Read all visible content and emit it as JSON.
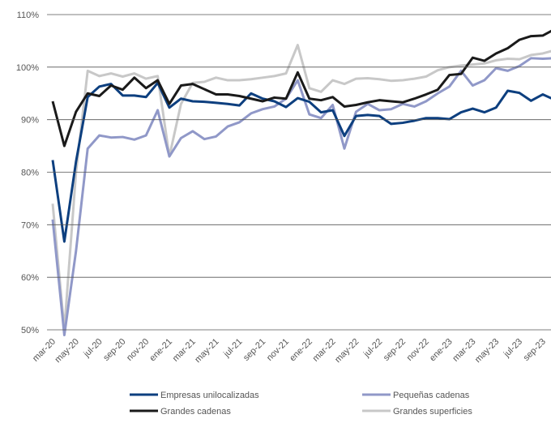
{
  "chart_data": {
    "type": "line",
    "categories": [
      "mar-20",
      null,
      "may-20",
      null,
      "jul-20",
      null,
      "sep-20",
      null,
      "nov-20",
      null,
      "ene-21",
      null,
      "mar-21",
      null,
      "may-21",
      null,
      "jul-21",
      null,
      "sep-21",
      null,
      "nov-21",
      null,
      "ene-22",
      null,
      "mar-22",
      null,
      "may-22",
      null,
      "jul-22",
      null,
      "sep-22",
      null,
      "nov-22",
      null,
      "ene-23",
      null,
      "mar-23",
      null,
      "may-23",
      null,
      "jul-23",
      null,
      "sep-23",
      null
    ],
    "series": [
      {
        "name": "Empresas unilocalizadas",
        "color": "#0d3f7f",
        "values": [
          82.3,
          66.8,
          82,
          94.3,
          96.3,
          96.8,
          94.6,
          94.6,
          94.3,
          97,
          92.3,
          94,
          93.5,
          93.4,
          93.2,
          93,
          92.7,
          95,
          94,
          93.5,
          92.4,
          94.1,
          93.4,
          91.4,
          91.8,
          86.9,
          90.7,
          90.9,
          90.7,
          89.2,
          89.4,
          89.8,
          90.3,
          90.3,
          90.1,
          91.4,
          92.1,
          91.4,
          92.3,
          95.5,
          95.1,
          93.6,
          94.8,
          93.8
        ]
      },
      {
        "name": "Pequeñas cadenas",
        "color": "#9098c8",
        "values": [
          71,
          49,
          65,
          84.5,
          87,
          86.6,
          86.7,
          86.2,
          87,
          91.8,
          83,
          86.5,
          87.8,
          86.3,
          86.8,
          88.7,
          89.5,
          91.2,
          92,
          92.5,
          94,
          97.5,
          91,
          90.3,
          92.8,
          84.5,
          91.5,
          93,
          91.8,
          92,
          93,
          92.5,
          93.5,
          95,
          96.3,
          99.3,
          96.5,
          97.5,
          99.8,
          99.3,
          100.2,
          101.7,
          101.6,
          101.7
        ]
      },
      {
        "name": "Grandes cadenas",
        "color": "#1a1a1a",
        "values": [
          93.5,
          85,
          91.5,
          95,
          94.5,
          96.5,
          95.7,
          98,
          96,
          97.5,
          93,
          96.5,
          96.8,
          95.8,
          94.8,
          94.8,
          94.5,
          94,
          93.5,
          94.2,
          94,
          99,
          94,
          93.7,
          94.3,
          92.5,
          92.8,
          93.3,
          93.7,
          93.5,
          93.3,
          94,
          94.8,
          95.7,
          98.5,
          98.7,
          101.8,
          101.2,
          102.6,
          103.6,
          105.2,
          105.9,
          106,
          107.2
        ]
      },
      {
        "name": "Grandes superficies",
        "color": "#c8c8c8",
        "values": [
          74,
          50,
          80,
          99.3,
          98.3,
          98.8,
          98.2,
          98.8,
          97.8,
          98.3,
          83,
          93,
          97,
          97.2,
          98,
          97.5,
          97.5,
          97.7,
          98,
          98.3,
          98.8,
          104.2,
          96,
          95.3,
          97.5,
          96.8,
          97.8,
          97.9,
          97.7,
          97.4,
          97.5,
          97.8,
          98.2,
          99.4,
          100,
          100.3,
          100.5,
          100.7,
          101.3,
          101.6,
          101.5,
          102.3,
          102.6,
          103.2
        ]
      }
    ],
    "ylim": [
      50,
      110
    ],
    "yticks": [
      {
        "value": 50,
        "label": "50%"
      },
      {
        "value": 60,
        "label": "60%"
      },
      {
        "value": 70,
        "label": "70%"
      },
      {
        "value": 80,
        "label": "80%"
      },
      {
        "value": 90,
        "label": "90%"
      },
      {
        "value": 100,
        "label": "100%"
      },
      {
        "value": 110,
        "label": "110%"
      }
    ],
    "grid": true
  }
}
